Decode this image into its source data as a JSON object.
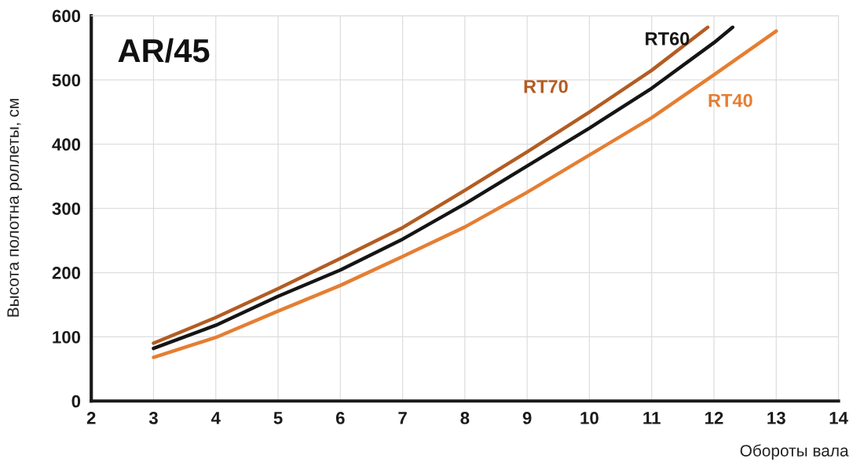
{
  "chart_data": {
    "type": "line",
    "title": "AR/45",
    "xlabel": "Обороты вала",
    "ylabel": "Высота полотна роллеты, см",
    "xlim": [
      2,
      14
    ],
    "xticks": [
      2,
      3,
      4,
      5,
      6,
      7,
      8,
      9,
      10,
      11,
      12,
      13,
      14
    ],
    "ylim": [
      0,
      600
    ],
    "yticks": [
      0,
      100,
      200,
      300,
      400,
      500,
      600
    ],
    "grid": true,
    "legend": false,
    "marker": "none",
    "line_style": "solid",
    "series": [
      {
        "name": "RT70",
        "color": "#b35c22",
        "x": [
          3,
          4,
          5,
          6,
          7,
          8,
          9,
          10,
          11,
          11.9
        ],
        "values": [
          90,
          130,
          175,
          222,
          270,
          328,
          388,
          450,
          515,
          582
        ]
      },
      {
        "name": "RT60",
        "color": "#151515",
        "x": [
          3,
          4,
          5,
          6,
          7,
          8,
          9,
          10,
          11,
          12,
          12.3
        ],
        "values": [
          82,
          118,
          163,
          204,
          252,
          307,
          366,
          425,
          487,
          558,
          582
        ]
      },
      {
        "name": "RT40",
        "color": "#e57e32",
        "x": [
          3,
          4,
          5,
          6,
          7,
          8,
          9,
          10,
          11,
          12,
          13
        ],
        "values": [
          68,
          99,
          140,
          180,
          225,
          271,
          325,
          383,
          441,
          508,
          576
        ]
      }
    ]
  }
}
